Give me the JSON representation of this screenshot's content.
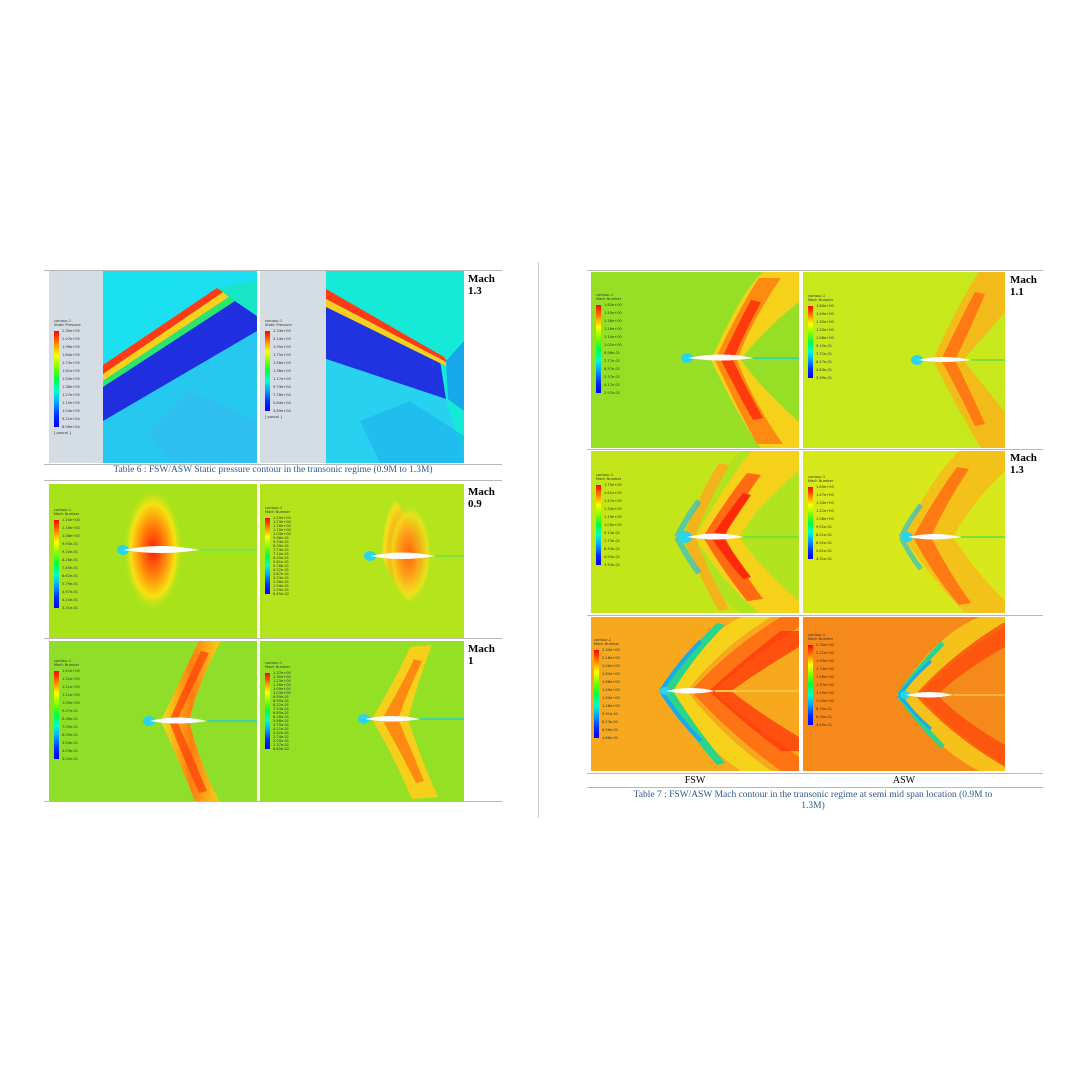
{
  "table6": {
    "caption": "Table 6 : FSW/ASW Static pressure contour in the transonic regime (0.9M to 1.3M)",
    "mach_labels": [
      "Mach 1.3",
      "Mach 0.9",
      "Mach 1"
    ],
    "legends": {
      "p13_fsw": {
        "title": "contour-1\nStatic Pressure",
        "values": [
          "2.30e+05",
          "2.07e+05",
          "1.96e+05",
          "1.84e+05",
          "1.73e+05",
          "1.61e+05",
          "1.50e+05",
          "1.38e+05",
          "1.27e+05",
          "1.15e+05",
          "1.04e+05",
          "9.21e+04",
          "8.06e+04"
        ],
        "unit": "[ pascal ]"
      },
      "p13_asw": {
        "title": "contour-1\nStatic Pressure",
        "values": [
          "2.33e+05",
          "2.14e+05",
          "1.95e+05",
          "1.75e+05",
          "1.56e+05",
          "1.36e+05",
          "1.17e+05",
          "9.73e+04",
          "7.78e+04",
          "5.84e+04",
          "3.89e+04"
        ],
        "unit": "[ pascal ]"
      },
      "m09_fsw": {
        "title": "contour-1\nMach Number",
        "values": [
          "1.24e+00",
          "1.16e+00",
          "1.08e+00",
          "9.93e-01",
          "9.10e-01",
          "8.28e-01",
          "7.45e-01",
          "6.62e-01",
          "5.79e-01",
          "4.97e-01",
          "4.14e-01",
          "3.31e-01"
        ],
        "unit": ""
      },
      "m09_asw": {
        "title": "contour-1\nMach Number",
        "values": [
          "1.29e+00",
          "1.23e+00",
          "1.16e+00",
          "1.10e+00",
          "1.03e+00",
          "9.68e-01",
          "9.03e-01",
          "8.39e-01",
          "7.74e-01",
          "7.10e-01",
          "6.45e-01",
          "5.81e-01",
          "5.16e-01",
          "4.52e-01",
          "3.87e-01",
          "3.23e-01",
          "2.58e-01",
          "1.94e-01",
          "1.29e-01",
          "6.45e-02"
        ],
        "unit": ""
      },
      "m10_fsw": {
        "title": "contour-1\nMach Number",
        "values": [
          "1.41e+00",
          "1.31e+00",
          "1.21e+00",
          "1.11e+00",
          "1.00e+00",
          "9.07e-01",
          "8.06e-01",
          "7.05e-01",
          "6.05e-01",
          "5.04e-01",
          "4.03e-01",
          "3.02e-01"
        ],
        "unit": ""
      },
      "m10_asw": {
        "title": "contour-1\nMach Number",
        "values": [
          "1.37e+00",
          "1.30e+00",
          "1.23e+00",
          "1.16e+00",
          "1.09e+00",
          "1.03e+00",
          "9.59e-01",
          "8.90e-01",
          "8.22e-01",
          "7.53e-01",
          "6.85e-01",
          "6.16e-01",
          "5.48e-01",
          "4.79e-01",
          "4.11e-01",
          "3.42e-01",
          "2.74e-01",
          "2.05e-01",
          "1.37e-01",
          "6.85e-02"
        ],
        "unit": ""
      }
    }
  },
  "table7": {
    "caption_line1": "Table 7 : FSW/ASW Mach contour in the transonic regime at semi mid span location (0.9M to",
    "caption_line2": "1.3M)",
    "mach_labels": [
      "Mach 1.1",
      "Mach 1.3"
    ],
    "col_fsw": "FSW",
    "col_asw": "ASW",
    "legends": {
      "r1_fsw": {
        "title": "contour-1\nMach Number",
        "values": [
          "1.62e+00",
          "1.50e+00",
          "1.38e+00",
          "1.26e+00",
          "1.14e+00",
          "1.02e+00",
          "8.98e-01",
          "7.77e-01",
          "6.57e-01",
          "5.37e-01",
          "4.17e-01",
          "2.97e-01"
        ]
      },
      "r1_asw": {
        "title": "contour-1\nMach Number",
        "values": [
          "1.64e+00",
          "1.49e+00",
          "1.35e+00",
          "1.20e+00",
          "1.06e+00",
          "9.15e-01",
          "7.71e-01",
          "6.27e-01",
          "4.83e-01",
          "3.39e-01"
        ]
      },
      "r2_fsw": {
        "title": "contour-1\nMach Number",
        "values": [
          "1.75e+00",
          "1.61e+00",
          "1.47e+00",
          "1.33e+00",
          "1.19e+00",
          "1.05e+00",
          "9.13e-01",
          "7.73e-01",
          "6.33e-01",
          "4.93e-01",
          "3.53e-01"
        ]
      },
      "r2_asw": {
        "title": "contour-1\nMach Number",
        "values": [
          "1.60e+00",
          "1.47e+00",
          "1.34e+00",
          "1.21e+00",
          "1.08e+00",
          "9.51e-01",
          "8.21e-01",
          "6.91e-01",
          "5.61e-01",
          "4.31e-01"
        ]
      },
      "r3_fsw": {
        "title": "contour-1\nMach Number",
        "values": [
          "2.33e+00",
          "2.16e+00",
          "2.00e+00",
          "1.83e+00",
          "1.66e+00",
          "1.49e+00",
          "1.33e+00",
          "1.16e+00",
          "9.91e-01",
          "8.23e-01",
          "6.56e-01",
          "4.88e-01"
        ]
      },
      "r3_asw": {
        "title": "contour-1\nMach Number",
        "values": [
          "2.30e+00",
          "2.11e+00",
          "1.93e+00",
          "1.74e+00",
          "1.56e+00",
          "1.37e+00",
          "1.19e+00",
          "1.00e+00",
          "8.15e-01",
          "6.30e-01",
          "4.45e-01"
        ]
      }
    }
  }
}
